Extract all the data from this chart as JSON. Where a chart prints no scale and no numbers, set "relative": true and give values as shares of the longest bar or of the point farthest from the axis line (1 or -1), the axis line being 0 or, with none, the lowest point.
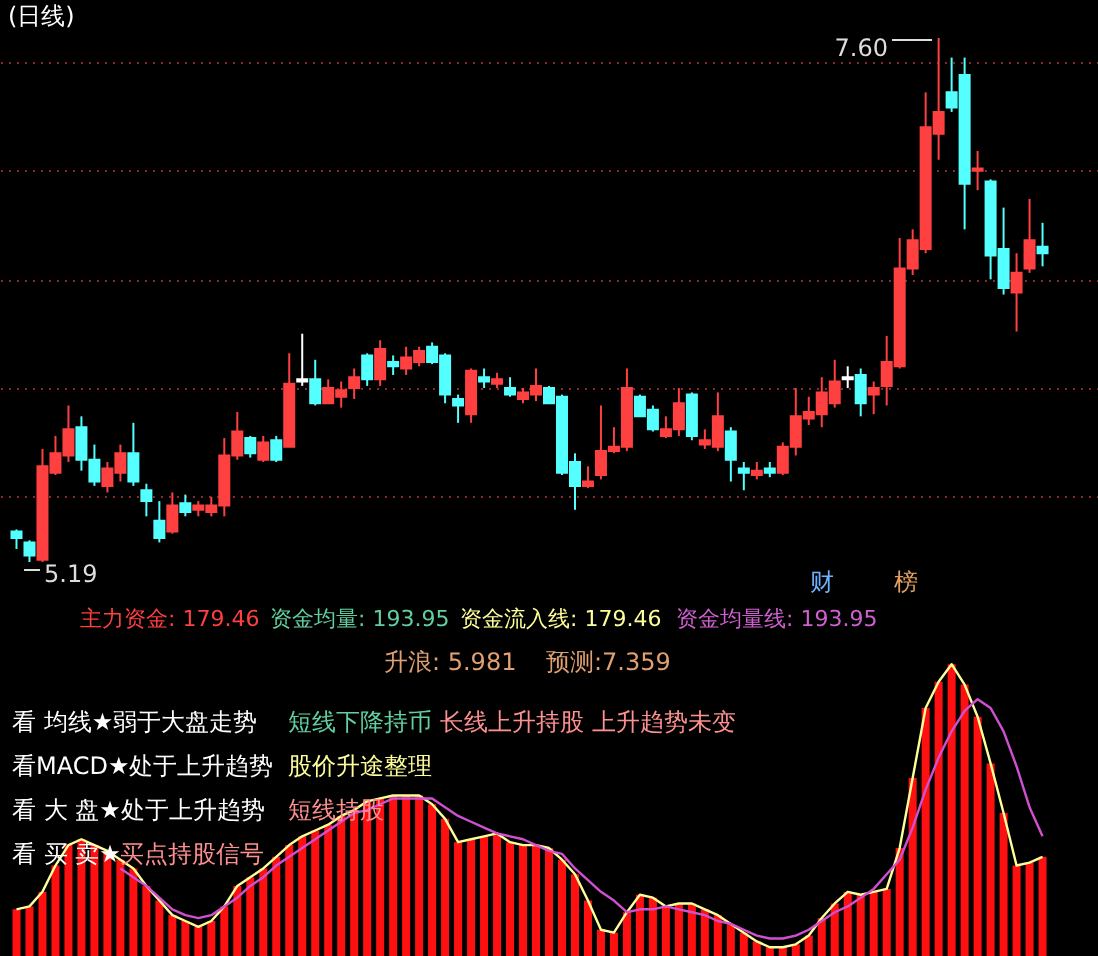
{
  "chart_data": [
    {
      "type": "candlestick",
      "title": "(日线)",
      "categories": [
        null,
        null,
        null,
        null,
        null,
        null,
        null,
        null,
        null,
        null,
        null,
        null,
        null,
        null,
        null,
        null,
        null,
        null,
        null,
        null,
        null,
        null,
        null,
        null,
        null,
        null,
        null,
        null,
        null,
        null,
        null,
        null,
        null,
        null,
        null,
        null,
        null,
        null,
        null,
        null,
        null,
        null,
        null,
        null,
        null,
        null,
        null,
        null,
        null,
        null,
        null,
        null,
        null,
        null,
        null,
        null,
        null,
        null,
        null,
        null,
        null,
        null,
        null,
        null,
        null,
        null,
        null,
        null,
        null,
        null,
        null,
        null,
        null,
        null,
        null,
        null,
        null,
        null,
        null,
        null
      ],
      "ohlc": [
        [
          5.33,
          5.34,
          5.25,
          5.3
        ],
        [
          5.28,
          5.29,
          5.19,
          5.22
        ],
        [
          5.2,
          5.71,
          5.19,
          5.63
        ],
        [
          5.6,
          5.77,
          5.59,
          5.69
        ],
        [
          5.68,
          5.91,
          5.65,
          5.8
        ],
        [
          5.81,
          5.86,
          5.61,
          5.66
        ],
        [
          5.66,
          5.73,
          5.54,
          5.56
        ],
        [
          5.54,
          5.65,
          5.51,
          5.62
        ],
        [
          5.6,
          5.73,
          5.56,
          5.69
        ],
        [
          5.69,
          5.83,
          5.54,
          5.56
        ],
        [
          5.52,
          5.55,
          5.4,
          5.47
        ],
        [
          5.38,
          5.47,
          5.28,
          5.3
        ],
        [
          5.33,
          5.51,
          5.32,
          5.45
        ],
        [
          5.46,
          5.5,
          5.4,
          5.42
        ],
        [
          5.43,
          5.47,
          5.4,
          5.45
        ],
        [
          5.42,
          5.49,
          5.4,
          5.45
        ],
        [
          5.45,
          5.76,
          5.4,
          5.68
        ],
        [
          5.68,
          5.88,
          5.66,
          5.79
        ],
        [
          5.76,
          5.77,
          5.67,
          5.69
        ],
        [
          5.66,
          5.77,
          5.65,
          5.74
        ],
        [
          5.75,
          5.77,
          5.65,
          5.66
        ],
        [
          5.72,
          6.15,
          5.72,
          6.01
        ],
        [
          6.02,
          6.24,
          6.0,
          6.03
        ],
        [
          6.03,
          6.12,
          5.91,
          5.92
        ],
        [
          5.92,
          6.03,
          5.92,
          5.99
        ],
        [
          5.95,
          6.02,
          5.9,
          5.98
        ],
        [
          5.99,
          6.08,
          5.94,
          6.04
        ],
        [
          6.14,
          6.15,
          6.0,
          6.03
        ],
        [
          6.03,
          6.21,
          6.0,
          6.17
        ],
        [
          6.11,
          6.14,
          6.05,
          6.09
        ],
        [
          6.08,
          6.18,
          6.05,
          6.13
        ],
        [
          6.11,
          6.18,
          6.09,
          6.16
        ],
        [
          6.18,
          6.2,
          6.1,
          6.11
        ],
        [
          6.14,
          6.15,
          5.92,
          5.96
        ],
        [
          5.94,
          5.96,
          5.83,
          5.91
        ],
        [
          5.87,
          6.08,
          5.83,
          6.07
        ],
        [
          6.04,
          6.08,
          5.99,
          6.02
        ],
        [
          6.01,
          6.06,
          5.99,
          6.03
        ],
        [
          5.99,
          6.04,
          5.95,
          5.96
        ],
        [
          5.94,
          5.99,
          5.92,
          5.97
        ],
        [
          5.96,
          6.08,
          5.93,
          6.0
        ],
        [
          5.99,
          6.0,
          5.92,
          5.92
        ],
        [
          5.95,
          5.96,
          5.59,
          5.6
        ],
        [
          5.65,
          5.69,
          5.43,
          5.54
        ],
        [
          5.54,
          5.63,
          5.53,
          5.56
        ],
        [
          5.59,
          5.91,
          5.57,
          5.7
        ],
        [
          5.7,
          5.81,
          5.69,
          5.72
        ],
        [
          5.72,
          6.08,
          5.7,
          5.99
        ],
        [
          5.95,
          5.96,
          5.86,
          5.86
        ],
        [
          5.89,
          5.91,
          5.79,
          5.8
        ],
        [
          5.77,
          5.86,
          5.76,
          5.8
        ],
        [
          5.8,
          5.99,
          5.77,
          5.92
        ],
        [
          5.96,
          5.97,
          5.75,
          5.77
        ],
        [
          5.73,
          5.8,
          5.71,
          5.75
        ],
        [
          5.72,
          5.97,
          5.7,
          5.86
        ],
        [
          5.79,
          5.81,
          5.56,
          5.66
        ],
        [
          5.62,
          5.65,
          5.52,
          5.6
        ],
        [
          5.59,
          5.65,
          5.57,
          5.61
        ],
        [
          5.62,
          5.65,
          5.58,
          5.6
        ],
        [
          5.6,
          5.74,
          5.59,
          5.72
        ],
        [
          5.72,
          5.99,
          5.68,
          5.86
        ],
        [
          5.85,
          5.95,
          5.82,
          5.88
        ],
        [
          5.87,
          6.04,
          5.81,
          5.97
        ],
        [
          5.92,
          6.12,
          5.9,
          6.02
        ],
        [
          6.03,
          6.09,
          5.99,
          6.04
        ],
        [
          6.05,
          6.08,
          5.86,
          5.92
        ],
        [
          5.96,
          6.02,
          5.87,
          5.99
        ],
        [
          6.0,
          6.23,
          5.91,
          6.11
        ],
        [
          6.09,
          6.68,
          6.08,
          6.54
        ],
        [
          6.54,
          6.72,
          6.51,
          6.67
        ],
        [
          6.63,
          7.35,
          6.61,
          7.19
        ],
        [
          7.16,
          7.6,
          7.04,
          7.26
        ],
        [
          7.35,
          7.51,
          7.26,
          7.28
        ],
        [
          7.43,
          7.51,
          6.72,
          6.93
        ],
        [
          6.99,
          7.08,
          6.9,
          7.0
        ],
        [
          6.94,
          6.95,
          6.49,
          6.6
        ],
        [
          6.63,
          6.82,
          6.42,
          6.45
        ],
        [
          6.43,
          6.61,
          6.25,
          6.52
        ],
        [
          6.54,
          6.86,
          6.52,
          6.67
        ],
        [
          6.64,
          6.75,
          6.55,
          6.61
        ]
      ],
      "colors": [
        "#54ffff",
        "#54ffff",
        "#ff4040",
        "#ff4040",
        "#ff4040",
        "#54ffff",
        "#54ffff",
        "#ff4040",
        "#ff4040",
        "#54ffff",
        "#54ffff",
        "#54ffff",
        "#ff4040",
        "#54ffff",
        "#ff4040",
        "#ff4040",
        "#ff4040",
        "#ff4040",
        "#54ffff",
        "#ff4040",
        "#54ffff",
        "#ff4040",
        "#ffffff",
        "#54ffff",
        "#ff4040",
        "#ff4040",
        "#ff4040",
        "#54ffff",
        "#ff4040",
        "#54ffff",
        "#ff4040",
        "#ff4040",
        "#54ffff",
        "#54ffff",
        "#54ffff",
        "#ff4040",
        "#54ffff",
        "#ff4040",
        "#54ffff",
        "#ff4040",
        "#ff4040",
        "#54ffff",
        "#54ffff",
        "#54ffff",
        "#ff4040",
        "#ff4040",
        "#ff4040",
        "#ff4040",
        "#54ffff",
        "#54ffff",
        "#ff4040",
        "#ff4040",
        "#54ffff",
        "#ff4040",
        "#ff4040",
        "#54ffff",
        "#54ffff",
        "#ff4040",
        "#54ffff",
        "#ff4040",
        "#ff4040",
        "#ff4040",
        "#ff4040",
        "#ff4040",
        "#ffffff",
        "#54ffff",
        "#ff4040",
        "#ff4040",
        "#ff4040",
        "#ff4040",
        "#ff4040",
        "#ff4040",
        "#54ffff",
        "#54ffff",
        "#ff4040",
        "#54ffff",
        "#54ffff",
        "#ff4040",
        "#ff4040",
        "#54ffff"
      ],
      "yticks": [
        {
          "value": 5.49,
          "label": null
        },
        {
          "value": 5.99,
          "label": null
        },
        {
          "value": 6.49,
          "label": null
        },
        {
          "value": 6.99,
          "label": null
        },
        {
          "value": 7.49,
          "label": null
        }
      ],
      "grid": "y",
      "annotations": [
        "7.60",
        "5.19",
        "财",
        "榜"
      ]
    },
    {
      "type": "bar",
      "relative": true,
      "categories": [
        null,
        null,
        null,
        null,
        null,
        null,
        null,
        null,
        null,
        null,
        null,
        null,
        null,
        null,
        null,
        null,
        null,
        null,
        null,
        null,
        null,
        null,
        null,
        null,
        null,
        null,
        null,
        null,
        null,
        null,
        null,
        null,
        null,
        null,
        null,
        null,
        null,
        null,
        null,
        null,
        null,
        null,
        null,
        null,
        null,
        null,
        null,
        null,
        null,
        null,
        null,
        null,
        null,
        null,
        null,
        null,
        null,
        null,
        null,
        null,
        null,
        null,
        null,
        null,
        null,
        null,
        null,
        null,
        null,
        null,
        null,
        null,
        null,
        null,
        null,
        null,
        null,
        null,
        null,
        null
      ],
      "series": [
        {
          "type": "bar",
          "color": "#ff1010",
          "values": [
            0.16,
            0.17,
            0.22,
            0.31,
            0.38,
            0.4,
            0.38,
            0.36,
            0.33,
            0.3,
            0.24,
            0.19,
            0.14,
            0.12,
            0.1,
            0.12,
            0.17,
            0.24,
            0.27,
            0.3,
            0.34,
            0.38,
            0.41,
            0.43,
            0.45,
            0.48,
            0.5,
            0.53,
            0.54,
            0.55,
            0.55,
            0.55,
            0.52,
            0.47,
            0.39,
            0.4,
            0.41,
            0.42,
            0.39,
            0.38,
            0.38,
            0.37,
            0.33,
            0.28,
            0.19,
            0.09,
            0.08,
            0.15,
            0.21,
            0.2,
            0.17,
            0.18,
            0.18,
            0.16,
            0.14,
            0.11,
            0.08,
            0.05,
            0.03,
            0.03,
            0.04,
            0.07,
            0.13,
            0.18,
            0.22,
            0.21,
            0.22,
            0.23,
            0.37,
            0.61,
            0.85,
            0.94,
            1,
            0.93,
            0.82,
            0.66,
            0.49,
            0.31,
            0.32,
            0.34
          ]
        },
        {
          "type": "line",
          "color": "#ffff99",
          "values": [
            0.16,
            0.17,
            0.22,
            0.31,
            0.38,
            0.4,
            0.38,
            0.36,
            0.33,
            0.3,
            0.24,
            0.19,
            0.14,
            0.12,
            0.1,
            0.12,
            0.17,
            0.24,
            0.27,
            0.3,
            0.34,
            0.38,
            0.41,
            0.43,
            0.45,
            0.48,
            0.5,
            0.53,
            0.54,
            0.55,
            0.55,
            0.55,
            0.52,
            0.47,
            0.39,
            0.4,
            0.41,
            0.42,
            0.39,
            0.38,
            0.38,
            0.37,
            0.33,
            0.28,
            0.19,
            0.09,
            0.08,
            0.15,
            0.21,
            0.2,
            0.17,
            0.18,
            0.18,
            0.16,
            0.14,
            0.11,
            0.08,
            0.05,
            0.03,
            0.03,
            0.04,
            0.07,
            0.13,
            0.18,
            0.22,
            0.21,
            0.22,
            0.23,
            0.37,
            0.61,
            0.85,
            0.94,
            1,
            0.93,
            0.82,
            0.66,
            0.49,
            0.31,
            0.32,
            0.34
          ]
        },
        {
          "type": "line",
          "color": "#d050d0",
          "values": [
            null,
            null,
            null,
            null,
            null,
            null,
            null,
            null,
            0.3,
            0.27,
            0.24,
            0.2,
            0.16,
            0.14,
            0.13,
            0.14,
            0.17,
            0.2,
            0.24,
            0.27,
            0.31,
            0.34,
            0.37,
            0.4,
            0.43,
            0.46,
            0.49,
            0.5,
            0.52,
            0.54,
            0.54,
            0.54,
            0.54,
            0.51,
            0.48,
            0.46,
            0.44,
            0.42,
            0.41,
            0.4,
            0.38,
            0.36,
            0.35,
            0.3,
            0.26,
            0.22,
            0.19,
            0.15,
            0.16,
            0.16,
            0.17,
            0.16,
            0.15,
            0.14,
            0.12,
            0.11,
            0.09,
            0.07,
            0.06,
            0.06,
            0.07,
            0.09,
            0.12,
            0.15,
            0.17,
            0.2,
            0.23,
            0.28,
            0.33,
            0.44,
            0.57,
            0.68,
            0.77,
            0.84,
            0.88,
            0.85,
            0.77,
            0.65,
            0.51,
            0.41
          ]
        }
      ],
      "annotations": [
        "主力资金: 179.46",
        "资金均量: 193.95",
        "资金流入线: 179.46",
        "资金均量线: 193.95",
        "升浪: 5.981",
        "预测:7.359",
        "看 均线★弱于大盘走势",
        "短线下降持币",
        "长线上升持股",
        "上升趋势未变",
        "看MACD★处于上升趋势",
        "股价升途整理",
        "看 大 盘★处于上升趋势",
        "短线持股",
        "看 买 卖★",
        "买点持股信号"
      ]
    }
  ]
}
